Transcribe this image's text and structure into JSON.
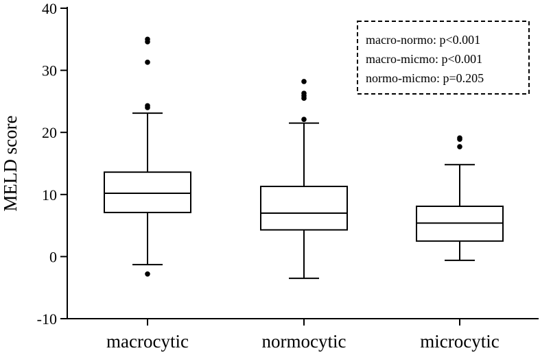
{
  "chart_data": {
    "type": "box",
    "title": "",
    "xlabel": "",
    "ylabel": "MELD score",
    "ylim": [
      -10,
      40
    ],
    "yticks": [
      -10,
      0,
      10,
      20,
      30,
      40
    ],
    "grid": false,
    "categories": [
      "macrocytic",
      "normocytic",
      "microcytic"
    ],
    "boxes": [
      {
        "category": "macrocytic",
        "whisker_low": -1.3,
        "q1": 7.1,
        "median": 10.2,
        "q3": 13.6,
        "whisker_high": 23.1,
        "outliers": [
          -2.8,
          24.0,
          24.3,
          31.3,
          34.6,
          35.0
        ]
      },
      {
        "category": "normocytic",
        "whisker_low": -3.5,
        "q1": 4.3,
        "median": 7.0,
        "q3": 11.3,
        "whisker_high": 21.5,
        "outliers": [
          22.1,
          25.5,
          25.9,
          26.3,
          28.2
        ]
      },
      {
        "category": "microcytic",
        "whisker_low": -0.6,
        "q1": 2.5,
        "median": 5.4,
        "q3": 8.1,
        "whisker_high": 14.8,
        "outliers": [
          17.7,
          18.9,
          19.1
        ]
      }
    ],
    "annotations": [
      "macro-normo: p<0.001",
      "macro-micmo: p<0.001",
      "normo-micmo: p=0.205"
    ],
    "annotation_box": "top-right, dashed border"
  }
}
